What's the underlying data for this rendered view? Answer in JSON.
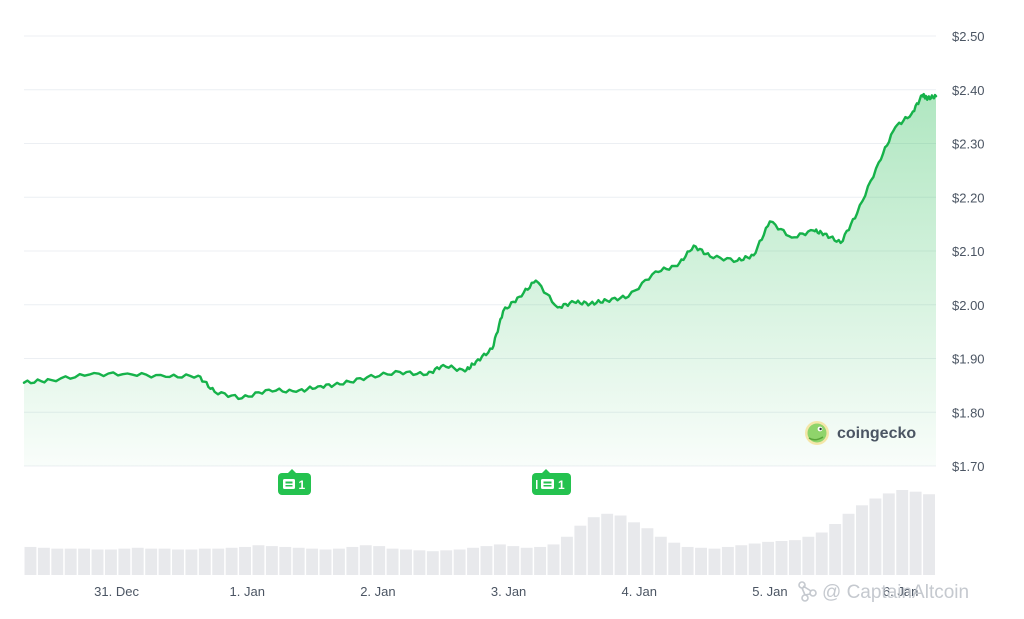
{
  "colors": {
    "line": "#16b24a",
    "area": "#2fbf5c",
    "volume": "#e8e9ec",
    "badge": "#24c24f",
    "grid": "#eceff3"
  },
  "brand": {
    "name": "coingecko",
    "logo_icon": "gecko-logo-icon"
  },
  "watermark": {
    "text": "@ CaptainAltcoin",
    "icon": "network-logo-icon"
  },
  "events": [
    {
      "date": "1 Jan",
      "count": "1",
      "icon": "news-icon"
    },
    {
      "date": "3 Jan",
      "count": "1",
      "icon": "news-icon"
    }
  ],
  "chart_data": {
    "type": "area",
    "title": "",
    "xlabel": "",
    "ylabel": "",
    "x_ticks": [
      "31. Dec",
      "1. Jan",
      "2. Jan",
      "3. Jan",
      "4. Jan",
      "5. Jan",
      "6. Jan"
    ],
    "y_ticks": [
      "$2.50",
      "$2.40",
      "$2.30",
      "$2.20",
      "$2.10",
      "$2.00",
      "$1.90",
      "$1.80",
      "$1.70"
    ],
    "ylim": [
      1.7,
      2.5
    ],
    "xlim": [
      "2024-12-30 07:00",
      "2025-01-06 06:30"
    ],
    "grid": true,
    "y_axis_position": "right",
    "series": [
      {
        "values_are": "price_usd",
        "x": [
          "2024-12-30 07:00",
          "2024-12-30 12:00",
          "2024-12-30 19:00",
          "2024-12-31 02:00",
          "2024-12-31 09:00",
          "2024-12-31 15:00",
          "2024-12-31 18:00",
          "2024-12-31 23:00",
          "2025-01-01 04:00",
          "2025-01-01 09:00",
          "2025-01-01 13:00",
          "2025-01-01 17:00",
          "2025-01-01 22:00",
          "2025-01-02 04:00",
          "2025-01-02 09:00",
          "2025-01-02 12:00",
          "2025-01-02 16:00",
          "2025-01-02 18:00",
          "2025-01-02 21:00",
          "2025-01-02 23:00",
          "2025-01-03 02:00",
          "2025-01-03 05:00",
          "2025-01-03 09:00",
          "2025-01-03 12:00",
          "2025-01-03 15:00",
          "2025-01-03 18:00",
          "2025-01-03 22:00",
          "2025-01-04 03:00",
          "2025-01-04 07:00",
          "2025-01-04 10:00",
          "2025-01-04 13:00",
          "2025-01-04 18:00",
          "2025-01-04 21:00",
          "2025-01-05 00:00",
          "2025-01-05 04:00",
          "2025-01-05 08:00",
          "2025-01-05 10:00",
          "2025-01-05 13:00",
          "2025-01-05 16:00",
          "2025-01-05 20:00",
          "2025-01-05 23:00",
          "2025-01-06 02:00",
          "2025-01-06 04:00",
          "2025-01-06 05:00",
          "2025-01-06 06:30"
        ],
        "y": [
          1.855,
          1.86,
          1.87,
          1.872,
          1.866,
          1.868,
          1.838,
          1.826,
          1.842,
          1.838,
          1.848,
          1.852,
          1.865,
          1.875,
          1.87,
          1.888,
          1.876,
          1.894,
          1.918,
          1.988,
          2.015,
          2.045,
          1.995,
          2.005,
          2.002,
          2.008,
          2.015,
          2.062,
          2.072,
          2.11,
          2.09,
          2.082,
          2.092,
          2.155,
          2.125,
          2.138,
          2.132,
          2.115,
          2.17,
          2.265,
          2.33,
          2.355,
          2.39,
          2.384,
          2.388
        ]
      },
      {
        "values_are": "relative_volume_0_to_1",
        "values": [
          0.33,
          0.32,
          0.31,
          0.31,
          0.31,
          0.3,
          0.3,
          0.31,
          0.32,
          0.31,
          0.31,
          0.3,
          0.3,
          0.31,
          0.31,
          0.32,
          0.33,
          0.35,
          0.34,
          0.33,
          0.32,
          0.31,
          0.3,
          0.31,
          0.33,
          0.35,
          0.34,
          0.31,
          0.3,
          0.29,
          0.28,
          0.29,
          0.3,
          0.32,
          0.34,
          0.36,
          0.34,
          0.32,
          0.33,
          0.36,
          0.45,
          0.58,
          0.68,
          0.72,
          0.7,
          0.62,
          0.55,
          0.45,
          0.38,
          0.33,
          0.32,
          0.31,
          0.33,
          0.35,
          0.37,
          0.39,
          0.4,
          0.41,
          0.45,
          0.5,
          0.6,
          0.72,
          0.82,
          0.9,
          0.96,
          1.0,
          0.98,
          0.95
        ]
      }
    ]
  }
}
